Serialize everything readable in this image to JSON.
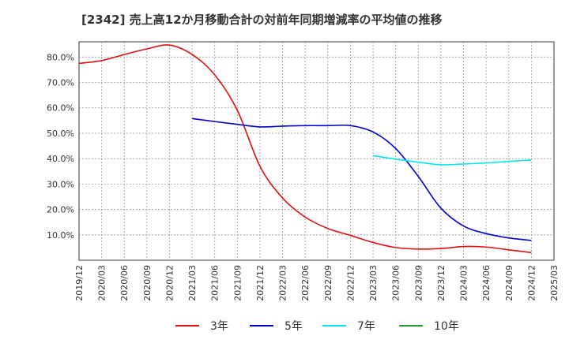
{
  "chart_data": {
    "type": "line",
    "title": "[2342]  売上高12か月移動合計の対前年同期増減率の平均値の推移",
    "xlabel": "",
    "ylabel": "",
    "x_ticks": [
      "2019/12",
      "2020/03",
      "2020/06",
      "2020/09",
      "2020/12",
      "2021/03",
      "2021/06",
      "2021/09",
      "2021/12",
      "2022/03",
      "2022/06",
      "2022/09",
      "2022/12",
      "2023/03",
      "2023/06",
      "2023/09",
      "2023/12",
      "2024/03",
      "2024/06",
      "2024/09",
      "2024/12",
      "2025/03"
    ],
    "y_ticks": [
      "10.0%",
      "20.0%",
      "30.0%",
      "40.0%",
      "50.0%",
      "60.0%",
      "70.0%",
      "80.0%"
    ],
    "ylim": [
      0,
      86
    ],
    "grid": true,
    "legend_position": "bottom",
    "series": [
      {
        "name": "3年",
        "color": "#dd1111",
        "x": [
          "2019/12",
          "2020/03",
          "2020/06",
          "2020/09",
          "2020/12",
          "2021/03",
          "2021/06",
          "2021/09",
          "2021/12",
          "2022/03",
          "2022/06",
          "2022/09",
          "2022/12",
          "2023/03",
          "2023/06",
          "2023/09",
          "2023/12",
          "2024/03",
          "2024/06",
          "2024/09",
          "2024/12"
        ],
        "values": [
          77.5,
          78.6,
          81.0,
          83.2,
          84.7,
          81.0,
          73.0,
          59.0,
          37.0,
          24.5,
          17.0,
          12.5,
          9.8,
          7.0,
          5.0,
          4.4,
          4.6,
          5.4,
          5.2,
          4.1,
          3.0
        ]
      },
      {
        "name": "5年",
        "color": "#0000cc",
        "x": [
          "2021/03",
          "2021/06",
          "2021/09",
          "2021/12",
          "2022/03",
          "2022/06",
          "2022/09",
          "2022/12",
          "2023/03",
          "2023/06",
          "2023/09",
          "2023/12",
          "2024/03",
          "2024/06",
          "2024/09",
          "2024/12"
        ],
        "values": [
          55.8,
          54.6,
          53.5,
          52.5,
          52.8,
          53.0,
          53.0,
          53.0,
          50.5,
          44.0,
          33.0,
          20.5,
          13.5,
          10.5,
          8.8,
          7.8
        ]
      },
      {
        "name": "7年",
        "color": "#00e5ee",
        "x": [
          "2023/03",
          "2023/06",
          "2023/09",
          "2023/12",
          "2024/03",
          "2024/06",
          "2024/09",
          "2024/12"
        ],
        "values": [
          41.2,
          39.8,
          38.6,
          37.6,
          37.9,
          38.3,
          38.9,
          39.5
        ]
      },
      {
        "name": "10年",
        "color": "#229922",
        "x": [],
        "values": []
      }
    ]
  }
}
